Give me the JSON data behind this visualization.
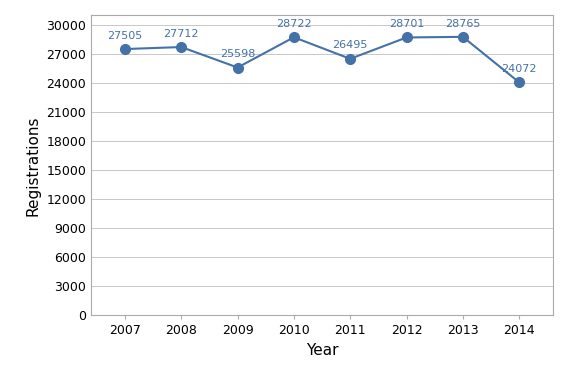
{
  "years": [
    2007,
    2008,
    2009,
    2010,
    2011,
    2012,
    2013,
    2014
  ],
  "values": [
    27505,
    27712,
    25598,
    28722,
    26495,
    28701,
    28765,
    24072
  ],
  "line_color": "#4472a8",
  "marker_color": "#4472a8",
  "xlabel": "Year",
  "ylabel": "Registrations",
  "ylim": [
    0,
    31000
  ],
  "yticks": [
    0,
    3000,
    6000,
    9000,
    12000,
    15000,
    18000,
    21000,
    24000,
    27000,
    30000
  ],
  "grid_color": "#c8c8c8",
  "background_color": "#ffffff",
  "label_color": "#4472a8",
  "label_fontsize": 8,
  "axis_label_fontsize": 11,
  "tick_fontsize": 9,
  "marker_size": 7,
  "line_width": 1.5,
  "xlim": [
    2006.4,
    2014.6
  ]
}
